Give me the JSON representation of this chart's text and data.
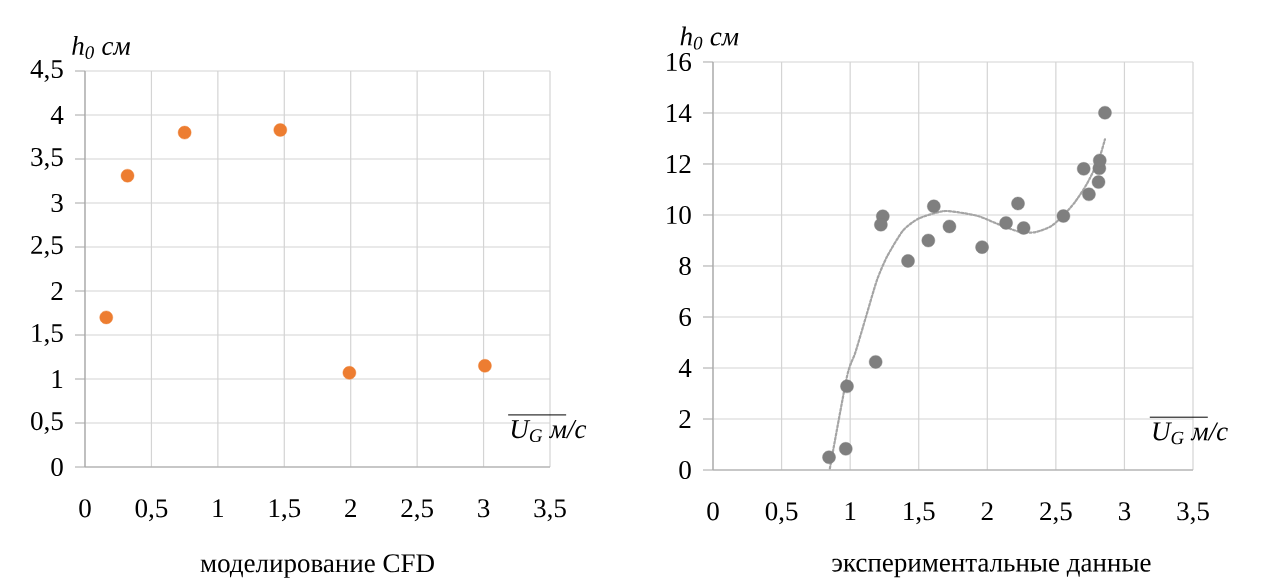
{
  "chart_data": [
    {
      "type": "scatter",
      "title": "моделирование CFD",
      "xlabel": "U$_{G}$ м/с",
      "ylabel": "h$_{0}$ см",
      "x": [
        0.16,
        0.32,
        0.75,
        1.47,
        1.99,
        3.01
      ],
      "values": [
        1.7,
        3.31,
        3.8,
        3.83,
        1.07,
        1.15
      ],
      "color": "#ed7d31",
      "marker": "circle",
      "grid": true,
      "xlim": [
        0,
        3.5
      ],
      "ylim": [
        0,
        4.5
      ],
      "xticks": [
        0,
        {
          "value": 0.5,
          "label": "0,5"
        },
        1,
        {
          "value": 1.5,
          "label": "1,5"
        },
        2,
        {
          "value": 2.5,
          "label": "2,5"
        },
        3,
        {
          "value": 3.5,
          "label": "3,5"
        }
      ],
      "yticks": [
        0,
        {
          "value": 0.5,
          "label": "0,5"
        },
        1,
        {
          "value": 1.5,
          "label": "1,5"
        },
        2,
        {
          "value": 2.5,
          "label": "2,5"
        },
        3,
        {
          "value": 3.5,
          "label": "3,5"
        },
        4,
        {
          "value": 4.5,
          "label": "4,5"
        }
      ]
    },
    {
      "type": "scatter",
      "title": "экспериментальные данные",
      "xlabel": "U$_{G}$ м/с",
      "ylabel": "h$_{0}$ см",
      "series": [
        {
          "type": "scatter",
          "color": "#7f7f7f",
          "marker": "circle",
          "x": [
            0.846,
            0.968,
            0.977,
            1.186,
            1.238,
            1.224,
            1.422,
            1.57,
            1.61,
            1.724,
            1.962,
            2.137,
            2.224,
            2.265,
            2.555,
            2.703,
            2.741,
            2.811,
            2.817,
            2.82,
            2.858
          ],
          "values": [
            0.5,
            0.83,
            3.28,
            4.24,
            9.95,
            9.62,
            8.2,
            9.0,
            10.34,
            9.55,
            8.74,
            9.69,
            10.45,
            9.49,
            9.96,
            11.81,
            10.81,
            11.29,
            11.83,
            12.14,
            14.01
          ]
        },
        {
          "type": "line",
          "color": "#a5a5a5",
          "marker": "none",
          "line_style": "dotted",
          "x": [
            0.852,
            0.977,
            1.038,
            1.116,
            1.195,
            1.27,
            1.387,
            1.503,
            1.677,
            1.794,
            1.939,
            2.084,
            2.229,
            2.346,
            2.462,
            2.549,
            2.637,
            2.724,
            2.811,
            2.858
          ],
          "values": [
            0.06,
            3.67,
            4.61,
            6.02,
            7.44,
            8.38,
            9.4,
            9.87,
            10.15,
            10.1,
            9.95,
            9.63,
            9.35,
            9.32,
            9.55,
            9.95,
            10.49,
            11.2,
            12.14,
            12.97
          ]
        }
      ],
      "grid": true,
      "xlim": [
        0,
        3.5
      ],
      "ylim": [
        0,
        16
      ],
      "xticks": [
        0,
        {
          "value": 0.5,
          "label": "0,5"
        },
        1,
        {
          "value": 1.5,
          "label": "1,5"
        },
        2,
        {
          "value": 2.5,
          "label": "2,5"
        },
        3,
        {
          "value": 3.5,
          "label": "3,5"
        }
      ],
      "yticks": [
        0,
        2,
        4,
        6,
        8,
        10,
        12,
        14,
        16
      ]
    }
  ]
}
